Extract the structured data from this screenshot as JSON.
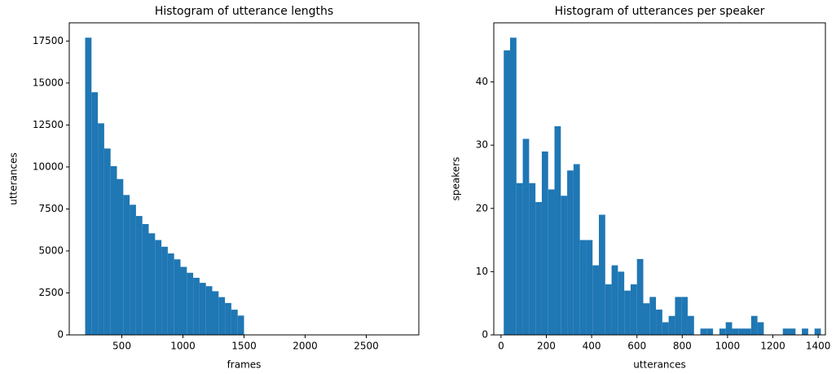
{
  "chart_data": [
    {
      "type": "histogram",
      "title": "Histogram of utterance lengths",
      "x_label": "frames",
      "y_label": "utterances",
      "color": "#1f77b4",
      "bins": [
        200,
        252,
        304,
        356,
        408,
        460,
        512,
        564,
        616,
        668,
        720,
        772,
        824,
        876,
        928,
        980,
        1032,
        1084,
        1136,
        1188,
        1240,
        1292,
        1344,
        1396,
        1448,
        1500,
        1552,
        1604,
        1656,
        1708,
        1760,
        1812,
        1864,
        1916,
        1968,
        2020,
        2072,
        2124,
        2176,
        2228,
        2280,
        2332,
        2384,
        2436,
        2488,
        2540,
        2592,
        2644,
        2696,
        2748,
        2800
      ],
      "values": [
        17700,
        14450,
        12600,
        11100,
        10050,
        9280,
        8330,
        7750,
        7080,
        6600,
        6050,
        5650,
        5250,
        4850,
        4500,
        4050,
        3700,
        3400,
        3100,
        2900,
        2600,
        2250,
        1900,
        1500,
        1150,
        0,
        0,
        0,
        0,
        0,
        0,
        0,
        0,
        0,
        0,
        0,
        0,
        0,
        0,
        0,
        0,
        0,
        0,
        0,
        0,
        0,
        0,
        0,
        0,
        0
      ],
      "xlim": [
        70,
        2930
      ],
      "ylim": [
        0,
        18585
      ],
      "xticks": [
        500,
        1000,
        1500,
        2000,
        2500
      ],
      "yticks": [
        0,
        2500,
        5000,
        7500,
        10000,
        12500,
        15000,
        17500
      ]
    },
    {
      "type": "histogram",
      "title": "Histogram of utterances per speaker",
      "x_label": "utterances",
      "y_label": "speakers",
      "color": "#1f77b4",
      "bins": [
        12,
        40,
        68,
        96,
        124,
        152,
        180,
        208,
        236,
        264,
        292,
        320,
        348,
        376,
        404,
        432,
        460,
        488,
        516,
        544,
        572,
        600,
        628,
        656,
        684,
        712,
        740,
        768,
        796,
        824,
        852,
        880,
        908,
        936,
        964,
        992,
        1020,
        1048,
        1076,
        1104,
        1132,
        1160,
        1188,
        1216,
        1244,
        1272,
        1300,
        1328,
        1356,
        1384,
        1412
      ],
      "values": [
        45,
        47,
        24,
        31,
        24,
        21,
        29,
        23,
        33,
        22,
        26,
        27,
        15,
        15,
        11,
        19,
        8,
        11,
        10,
        7,
        8,
        12,
        5,
        6,
        4,
        2,
        3,
        6,
        6,
        3,
        0,
        1,
        1,
        0,
        1,
        2,
        1,
        1,
        1,
        3,
        2,
        0,
        0,
        0,
        1,
        1,
        0,
        1,
        0,
        1
      ],
      "xlim": [
        -32,
        1432
      ],
      "ylim": [
        0,
        49.35
      ],
      "xticks": [
        0,
        200,
        400,
        600,
        800,
        1000,
        1200,
        1400
      ],
      "yticks": [
        0,
        10,
        20,
        30,
        40
      ]
    }
  ]
}
